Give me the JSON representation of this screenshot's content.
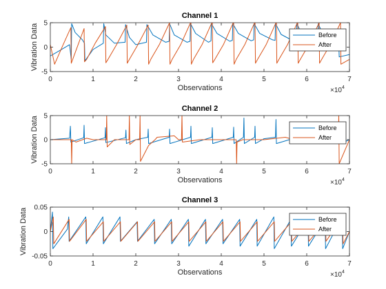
{
  "chart_data": [
    {
      "type": "line",
      "title": "Channel 1",
      "xlabel": "Observations",
      "ylabel": "Vibration Data",
      "xlim": [
        0,
        70000
      ],
      "ylim": [
        -5,
        5
      ],
      "xticks": [
        0,
        10000,
        20000,
        30000,
        40000,
        50000,
        60000,
        70000
      ],
      "xticklabels": [
        "0",
        "1",
        "2",
        "3",
        "4",
        "5",
        "6",
        "7"
      ],
      "yticks": [
        -5,
        0,
        5
      ],
      "yticklabels": [
        "-5",
        "0",
        "5"
      ],
      "x_multiplier": {
        "base": "×10",
        "exponent": "4"
      },
      "legend": {
        "position": "top-right",
        "entries": [
          "Before",
          "After"
        ]
      },
      "series": [
        {
          "name": "Before",
          "color": "#0072BD",
          "x": [
            0,
            2000,
            4500,
            4900,
            5000,
            5800,
            7500,
            8000,
            8100,
            10000,
            12400,
            12500,
            13000,
            15000,
            17500,
            17600,
            18500,
            20000,
            22500,
            22600,
            24000,
            27000,
            27800,
            27900,
            29000,
            32000,
            32700,
            32800,
            34000,
            37000,
            37600,
            37700,
            39000,
            42000,
            42600,
            42700,
            44000,
            47000,
            47600,
            47700,
            49000,
            52000,
            52600,
            52700,
            54000,
            57000,
            57600,
            57700,
            59000,
            62000,
            62600,
            62700,
            64000,
            67000,
            67500,
            67600,
            70000
          ],
          "y": [
            -1.8,
            -0.8,
            0.5,
            -2.5,
            4.8,
            3.0,
            1.5,
            0.8,
            -2.8,
            -0.5,
            0.8,
            4.8,
            2.5,
            0.8,
            1.0,
            4.6,
            2.0,
            0.5,
            1.0,
            4.6,
            2.5,
            1.0,
            1.2,
            4.8,
            2.5,
            1.0,
            1.2,
            4.8,
            2.8,
            1.0,
            1.3,
            4.8,
            2.8,
            1.2,
            1.4,
            4.8,
            2.8,
            1.3,
            1.5,
            4.8,
            2.8,
            1.5,
            1.4,
            4.8,
            2.6,
            1.2,
            1.2,
            4.8,
            2.4,
            1.0,
            1.2,
            4.8,
            2.2,
            0.8,
            1.0,
            -2.0,
            -1.5
          ]
        },
        {
          "name": "After",
          "color": "#D95319",
          "x": [
            0,
            1000,
            3000,
            4800,
            4900,
            6500,
            7900,
            8000,
            8500,
            10500,
            12900,
            13000,
            13500,
            15500,
            17900,
            18000,
            18500,
            20500,
            22900,
            23000,
            23500,
            25500,
            27900,
            28000,
            28500,
            30500,
            32900,
            33000,
            33500,
            35500,
            37900,
            38000,
            38500,
            40500,
            42900,
            43000,
            43500,
            45500,
            47900,
            48000,
            48500,
            50500,
            52900,
            53000,
            53500,
            55500,
            57900,
            58000,
            58500,
            60500,
            62900,
            63000,
            63500,
            65500,
            67900,
            68000,
            70000
          ],
          "y": [
            0.5,
            -3.5,
            0.5,
            4.0,
            -3.3,
            0.5,
            3.8,
            -3.0,
            -2.5,
            0.8,
            4.2,
            -3.2,
            -2.5,
            0.5,
            4.5,
            -3.3,
            -2.5,
            0.5,
            4.5,
            -3.5,
            -2.5,
            0.5,
            5.0,
            -3.5,
            -2.5,
            0.5,
            5.2,
            -3.5,
            -2.5,
            0.5,
            5.2,
            -3.2,
            -2.5,
            0.5,
            5.2,
            -3.5,
            -2.5,
            0.5,
            5.2,
            -3.3,
            -2.5,
            0.5,
            5.2,
            -3.3,
            -2.5,
            0.5,
            5.2,
            -3.3,
            -2.5,
            0.5,
            5.0,
            -3.3,
            -2.5,
            0.5,
            5.0,
            -3.5,
            -2.5
          ]
        }
      ]
    },
    {
      "type": "line",
      "title": "Channel 2",
      "xlabel": "Observations",
      "ylabel": "Vibration Data",
      "xlim": [
        0,
        70000
      ],
      "ylim": [
        -5,
        5
      ],
      "xticks": [
        0,
        10000,
        20000,
        30000,
        40000,
        50000,
        60000,
        70000
      ],
      "xticklabels": [
        "0",
        "1",
        "2",
        "3",
        "4",
        "5",
        "6",
        "7"
      ],
      "yticks": [
        -5,
        0,
        5
      ],
      "yticklabels": [
        "-5",
        "0",
        "5"
      ],
      "x_multiplier": {
        "base": "×10",
        "exponent": "4"
      },
      "legend": {
        "position": "top-right",
        "entries": [
          "Before",
          "After"
        ]
      },
      "series": [
        {
          "name": "Before",
          "color": "#0072BD",
          "x": [
            0,
            4500,
            4700,
            4800,
            7800,
            7900,
            8000,
            12800,
            12900,
            13000,
            17600,
            17700,
            17800,
            20000,
            22800,
            22900,
            23000,
            27800,
            27900,
            28000,
            32800,
            32900,
            33000,
            37800,
            37900,
            38000,
            42800,
            42900,
            43000,
            45200,
            45300,
            45400,
            47800,
            47900,
            48000,
            50000,
            52700,
            52800,
            52900,
            57800,
            57900,
            58000,
            62800,
            62900,
            63000,
            67800,
            67900,
            68000,
            70000
          ],
          "y": [
            0,
            0.3,
            2.8,
            -0.5,
            0.4,
            3.0,
            -0.8,
            0.4,
            2.5,
            -0.6,
            0.4,
            2.0,
            -0.8,
            0,
            0.5,
            2.2,
            -0.8,
            0.5,
            2.2,
            -0.8,
            0.5,
            2.8,
            -0.8,
            0.5,
            2.5,
            -0.8,
            0.5,
            2.6,
            -0.8,
            0.5,
            4.5,
            -0.8,
            0.5,
            2.8,
            -0.8,
            0.2,
            0.5,
            4.2,
            -0.8,
            0.5,
            2.5,
            -0.8,
            0.5,
            2.8,
            -0.8,
            0.5,
            2.8,
            -0.8,
            0
          ]
        },
        {
          "name": "After",
          "color": "#D95319",
          "x": [
            0,
            3000,
            4900,
            5000,
            5100,
            6000,
            8500,
            10000,
            13100,
            13200,
            13300,
            15000,
            18400,
            18500,
            18600,
            20000,
            20900,
            21000,
            21100,
            23000,
            24500,
            25000,
            29000,
            30000,
            30700,
            30800,
            30900,
            35000,
            40000,
            42500,
            43500,
            43600,
            43700,
            45000,
            50000,
            55000,
            57000,
            60000,
            65000,
            67400,
            67500,
            67600,
            70000
          ],
          "y": [
            0,
            0,
            0,
            -5.2,
            0,
            -0.5,
            0.3,
            0,
            0,
            5.0,
            -1.5,
            0,
            0,
            5.0,
            -1.0,
            0,
            0,
            5.0,
            -4.5,
            -1.2,
            0,
            0.5,
            0.8,
            0,
            0,
            5.0,
            -0.5,
            0,
            0,
            0,
            0,
            -5.0,
            -0.5,
            0,
            0,
            0.5,
            0,
            0,
            0,
            0,
            5.0,
            -5.0,
            0
          ]
        }
      ]
    },
    {
      "type": "line",
      "title": "Channel 3",
      "xlabel": "Observations",
      "ylabel": "Vibration Data",
      "xlim": [
        0,
        70000
      ],
      "ylim": [
        -0.05,
        0.05
      ],
      "xticks": [
        0,
        10000,
        20000,
        30000,
        40000,
        50000,
        60000,
        70000
      ],
      "xticklabels": [
        "0",
        "1",
        "2",
        "3",
        "4",
        "5",
        "6",
        "7"
      ],
      "yticks": [
        -0.05,
        0,
        0.05
      ],
      "yticklabels": [
        "-0.05",
        "0",
        "0.05"
      ],
      "x_multiplier": {
        "base": "×10",
        "exponent": "4"
      },
      "legend": {
        "position": "top-right",
        "entries": [
          "Before",
          "After"
        ]
      },
      "series": [
        {
          "name": "Before",
          "color": "#0072BD",
          "x": [
            0,
            500,
            600,
            4000,
            4300,
            4400,
            8300,
            8400,
            12300,
            12400,
            16300,
            16400,
            20300,
            20400,
            24300,
            24400,
            28300,
            28400,
            32300,
            32400,
            36300,
            36400,
            40300,
            40400,
            44300,
            44400,
            48300,
            48400,
            52300,
            52400,
            56300,
            56400,
            60300,
            60400,
            64300,
            64400,
            68300,
            68400,
            70000
          ],
          "y": [
            0,
            0.04,
            -0.035,
            0.005,
            0.03,
            -0.02,
            0.03,
            -0.025,
            0.03,
            -0.025,
            0.03,
            -0.02,
            0.02,
            -0.02,
            0.025,
            -0.025,
            0.025,
            -0.025,
            0.025,
            -0.03,
            0.025,
            -0.025,
            0.025,
            -0.025,
            0.025,
            -0.03,
            0.025,
            -0.03,
            0.03,
            -0.035,
            0.025,
            -0.03,
            0.025,
            -0.03,
            0.025,
            -0.035,
            0.03,
            -0.035,
            0
          ]
        },
        {
          "name": "After",
          "color": "#D95319",
          "x": [
            0,
            700,
            800,
            4400,
            4500,
            8400,
            8500,
            12400,
            12500,
            16400,
            16500,
            20400,
            20500,
            24400,
            24500,
            28400,
            28500,
            32400,
            32500,
            36400,
            36500,
            40400,
            40500,
            44400,
            44500,
            48400,
            48500,
            52400,
            52500,
            56400,
            56500,
            60400,
            60500,
            64400,
            64500,
            68400,
            68500,
            70000
          ],
          "y": [
            0,
            0.03,
            -0.025,
            0.025,
            -0.02,
            0.025,
            -0.02,
            0.02,
            -0.02,
            0.02,
            -0.02,
            0.02,
            -0.02,
            0.02,
            -0.02,
            0.02,
            -0.02,
            0.02,
            -0.02,
            0.02,
            -0.02,
            0.02,
            -0.02,
            0.02,
            -0.02,
            0.02,
            -0.02,
            0.02,
            -0.02,
            0.02,
            -0.02,
            0.02,
            -0.02,
            0.02,
            -0.02,
            0.03,
            -0.025,
            0
          ]
        }
      ]
    }
  ]
}
